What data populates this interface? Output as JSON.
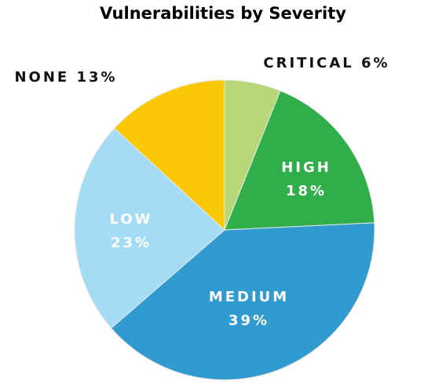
{
  "chart_data": {
    "type": "pie",
    "title": "Vulnerabilities by Severity",
    "slices": [
      {
        "name": "CRITICAL",
        "value": 6,
        "label": "6%",
        "color": "#b8d878",
        "label_inside": false,
        "label_color": "#111111"
      },
      {
        "name": "HIGH",
        "value": 18,
        "label": "18%",
        "color": "#2fae4a",
        "label_inside": true,
        "label_color": "#ffffff"
      },
      {
        "name": "MEDIUM",
        "value": 39,
        "label": "39%",
        "color": "#319ace",
        "label_inside": true,
        "label_color": "#ffffff"
      },
      {
        "name": "LOW",
        "value": 23,
        "label": "23%",
        "color": "#a4dcf6",
        "label_inside": true,
        "label_color": "#ffffff"
      },
      {
        "name": "NONE",
        "value": 13,
        "label": "13%",
        "color": "#fbc805",
        "label_inside": false,
        "label_color": "#111111"
      }
    ],
    "start_angle_deg": 0,
    "direction": "clockwise",
    "slice_border_color": "#e8e8e8"
  }
}
